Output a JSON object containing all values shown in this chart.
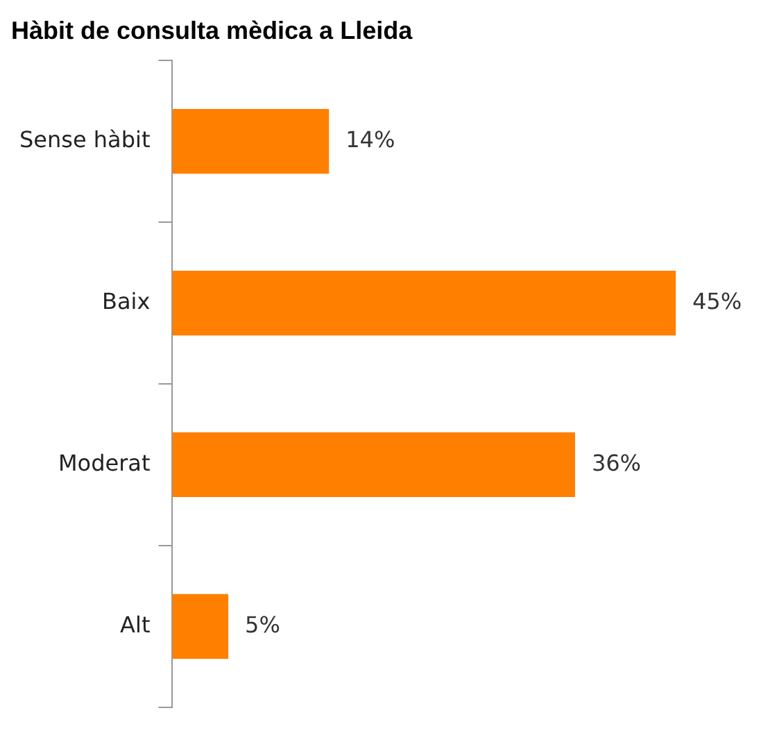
{
  "chart_data": {
    "type": "bar",
    "orientation": "horizontal",
    "title": "Hàbit de consulta mèdica a Lleida",
    "categories": [
      "Sense hàbit",
      "Baix",
      "Moderat",
      "Alt"
    ],
    "values": [
      14,
      45,
      36,
      5
    ],
    "value_labels": [
      "14%",
      "45%",
      "36%",
      "5%"
    ],
    "color": "#ff7f00",
    "legend": false
  }
}
